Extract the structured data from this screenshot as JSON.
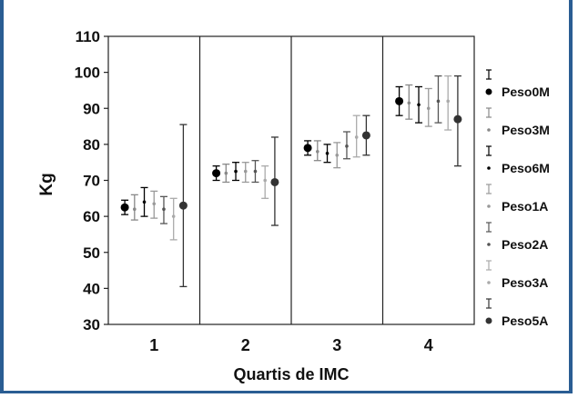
{
  "chart_data": {
    "type": "scatter",
    "error_bars": true,
    "title": "",
    "xlabel": "Quartis de IMC",
    "ylabel": "Kg",
    "ylim": [
      30,
      110
    ],
    "yticks": [
      30,
      40,
      50,
      60,
      70,
      80,
      90,
      100,
      110
    ],
    "categories": [
      "1",
      "2",
      "3",
      "4"
    ],
    "legend_position": "right",
    "grid": false,
    "series": [
      {
        "name": "Peso0M",
        "marker": "large-dot",
        "color": "#000000",
        "values": [
          62.5,
          72,
          79,
          92
        ],
        "lower": [
          60.5,
          70,
          77,
          88
        ],
        "upper": [
          64.5,
          74,
          81,
          96
        ]
      },
      {
        "name": "Peso3M",
        "marker": "small-dot",
        "color": "#888888",
        "values": [
          62,
          72,
          78,
          91.5
        ],
        "lower": [
          59,
          69.5,
          75.5,
          87
        ],
        "upper": [
          66,
          74.5,
          81,
          96.5
        ]
      },
      {
        "name": "Peso6M",
        "marker": "small-dot",
        "color": "#000000",
        "values": [
          64,
          72.5,
          77.5,
          91
        ],
        "lower": [
          60,
          70,
          75,
          86
        ],
        "upper": [
          68,
          75,
          80,
          96
        ]
      },
      {
        "name": "Peso1A",
        "marker": "small-dot",
        "color": "#999999",
        "values": [
          63.5,
          72.5,
          77,
          90
        ],
        "lower": [
          59.5,
          69.5,
          73.5,
          85
        ],
        "upper": [
          67,
          75,
          80.5,
          95.5
        ]
      },
      {
        "name": "Peso2A",
        "marker": "small-dot",
        "color": "#555555",
        "values": [
          62,
          72.5,
          79.5,
          92
        ],
        "lower": [
          58,
          69.5,
          76,
          86
        ],
        "upper": [
          65.5,
          75.5,
          83.5,
          99
        ]
      },
      {
        "name": "Peso3A",
        "marker": "small-dot",
        "color": "#aaaaaa",
        "values": [
          60,
          70,
          82,
          92
        ],
        "lower": [
          53.5,
          65,
          76.5,
          84
        ],
        "upper": [
          65,
          74,
          88,
          99
        ]
      },
      {
        "name": "Peso5A",
        "marker": "large-dot",
        "color": "#333333",
        "values": [
          63,
          69.5,
          82.5,
          87
        ],
        "lower": [
          40.5,
          57.5,
          77,
          74
        ],
        "upper": [
          85.5,
          82,
          88,
          99
        ]
      }
    ]
  }
}
